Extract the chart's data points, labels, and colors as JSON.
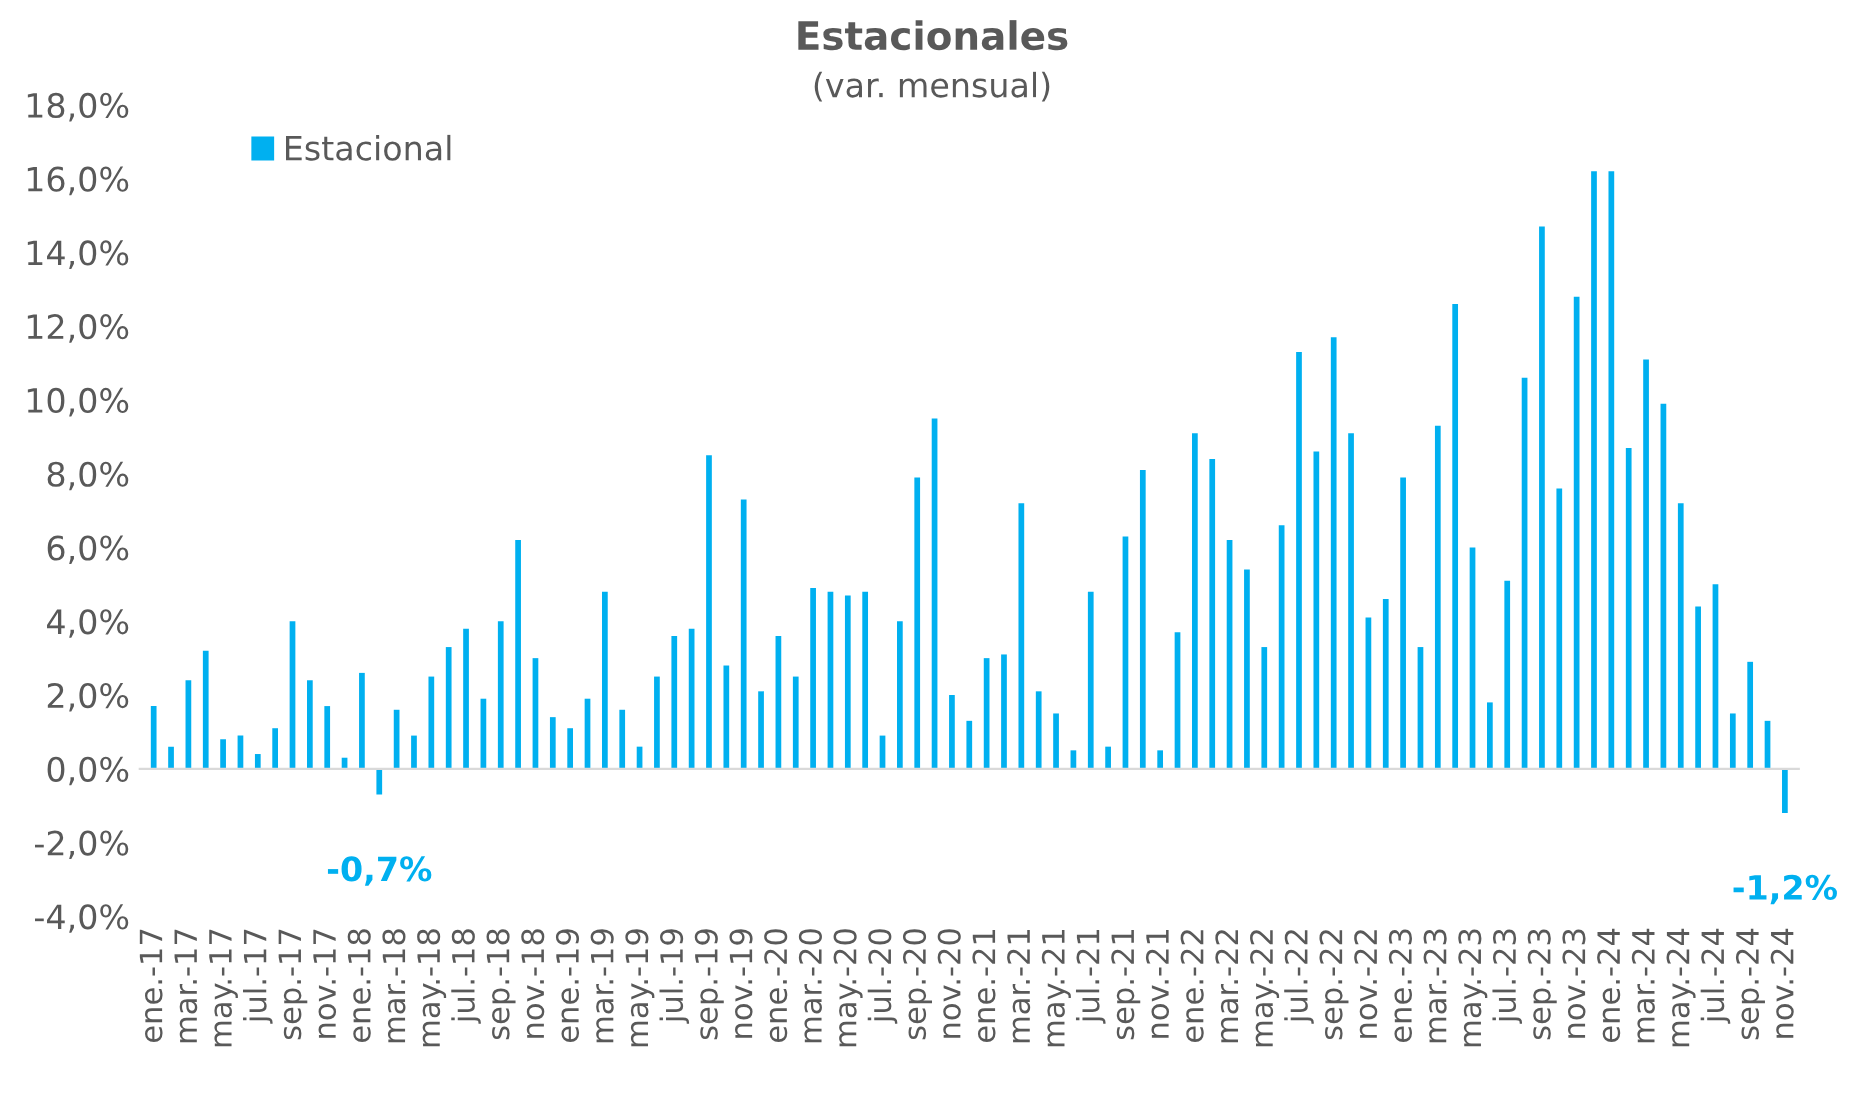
{
  "chart_data": {
    "type": "bar",
    "title": "Estacionales",
    "subtitle": "(var. mensual)",
    "categories": [
      "ene.-17",
      null,
      "mar.-17",
      null,
      "may.-17",
      null,
      "jul.-17",
      null,
      "sep.-17",
      null,
      "nov.-17",
      null,
      "ene.-18",
      null,
      "mar.-18",
      null,
      "may.-18",
      null,
      "jul.-18",
      null,
      "sep.-18",
      null,
      "nov.-18",
      null,
      "ene.-19",
      null,
      "mar.-19",
      null,
      "may.-19",
      null,
      "jul.-19",
      null,
      "sep.-19",
      null,
      "nov.-19",
      null,
      "ene.-20",
      null,
      "mar.-20",
      null,
      "may.-20",
      null,
      "jul.-20",
      null,
      "sep.-20",
      null,
      "nov.-20",
      null,
      "ene.-21",
      null,
      "mar.-21",
      null,
      "may.-21",
      null,
      "jul.-21",
      null,
      "sep.-21",
      null,
      "nov.-21",
      null,
      "ene.-22",
      null,
      "mar.-22",
      null,
      "may.-22",
      null,
      "jul.-22",
      null,
      "sep.-22",
      null,
      "nov.-22",
      null,
      "ene.-23",
      null,
      "mar.-23",
      null,
      "may.-23",
      null,
      "jul.-23",
      null,
      "sep.-23",
      null,
      "nov.-23",
      null,
      "ene.-24",
      null,
      "mar.-24",
      null,
      "may.-24",
      null,
      "jul.-24",
      null,
      "sep.-24",
      null,
      "nov.-24"
    ],
    "series": [
      {
        "name": "Estacional",
        "color": "#00b0f0",
        "values": [
          1.7,
          0.6,
          2.4,
          3.2,
          0.8,
          0.9,
          0.4,
          1.1,
          4.0,
          2.4,
          1.7,
          0.3,
          2.6,
          -0.7,
          1.6,
          0.9,
          2.5,
          3.3,
          3.8,
          1.9,
          4.0,
          6.2,
          3.0,
          1.4,
          1.1,
          1.9,
          4.8,
          1.6,
          0.6,
          2.5,
          3.6,
          3.8,
          8.5,
          2.8,
          7.3,
          2.1,
          3.6,
          2.5,
          4.9,
          4.8,
          4.7,
          4.8,
          0.9,
          4.0,
          7.9,
          9.5,
          2.0,
          1.3,
          3.0,
          3.1,
          7.2,
          2.1,
          1.5,
          0.5,
          4.8,
          0.6,
          6.3,
          8.1,
          0.5,
          3.7,
          9.1,
          8.4,
          6.2,
          5.4,
          3.3,
          6.6,
          11.3,
          8.6,
          11.7,
          9.1,
          4.1,
          4.6,
          7.9,
          3.3,
          9.3,
          12.6,
          6.0,
          1.8,
          5.1,
          10.6,
          14.7,
          7.6,
          12.8,
          16.2,
          16.2,
          8.7,
          11.1,
          9.9,
          7.2,
          4.4,
          5.0,
          1.5,
          2.9,
          1.3,
          -1.2
        ],
        "value_labels": [
          null,
          null,
          null,
          null,
          null,
          null,
          null,
          null,
          null,
          null,
          null,
          null,
          null,
          "-0,7%",
          null,
          null,
          null,
          null,
          null,
          null,
          null,
          null,
          null,
          null,
          null,
          null,
          null,
          null,
          null,
          null,
          null,
          null,
          null,
          null,
          null,
          null,
          null,
          null,
          null,
          null,
          null,
          null,
          null,
          null,
          null,
          null,
          null,
          null,
          null,
          null,
          null,
          null,
          null,
          null,
          null,
          null,
          null,
          null,
          null,
          null,
          null,
          null,
          null,
          null,
          null,
          null,
          null,
          null,
          null,
          null,
          null,
          null,
          null,
          null,
          null,
          null,
          null,
          null,
          null,
          null,
          null,
          null,
          null,
          null,
          null,
          null,
          null,
          null,
          null,
          null,
          null,
          null,
          null,
          null,
          "-1,2%"
        ]
      }
    ],
    "ylim": [
      -4,
      18
    ],
    "yticks": [
      {
        "value": -4,
        "label": "-4,0%"
      },
      {
        "value": -2,
        "label": "-2,0%"
      },
      {
        "value": 0,
        "label": "0,0%"
      },
      {
        "value": 2,
        "label": "2,0%"
      },
      {
        "value": 4,
        "label": "4,0%"
      },
      {
        "value": 6,
        "label": "6,0%"
      },
      {
        "value": 8,
        "label": "8,0%"
      },
      {
        "value": 10,
        "label": "10,0%"
      },
      {
        "value": 12,
        "label": "12,0%"
      },
      {
        "value": 14,
        "label": "14,0%"
      },
      {
        "value": 16,
        "label": "16,0%"
      },
      {
        "value": 18,
        "label": "18,0%"
      }
    ],
    "legend": "top left"
  }
}
